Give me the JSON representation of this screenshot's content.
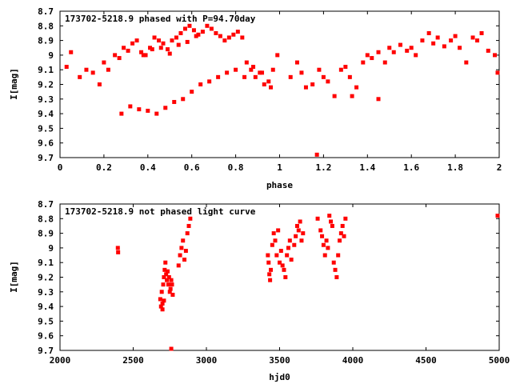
{
  "colors": {
    "points": "#ff0000",
    "frame": "#000000",
    "background": "#ffffff"
  },
  "chart_data": [
    {
      "type": "scatter",
      "title": "173702-5218.9 phased with P=94.70day",
      "xlabel": "phase",
      "ylabel": "I[mag]",
      "xlim": [
        0,
        2
      ],
      "ylim": [
        8.7,
        9.7
      ],
      "y_inverted": true,
      "grid": false,
      "x_ticks": [
        "0",
        "0.2",
        "0.4",
        "0.6",
        "0.8",
        "1",
        "1.2",
        "1.4",
        "1.6",
        "1.8",
        "2"
      ],
      "y_ticks": [
        "8.7",
        "8.8",
        "8.9",
        "9",
        "9.1",
        "9.2",
        "9.3",
        "9.4",
        "9.5",
        "9.6",
        "9.7"
      ],
      "series": [
        {
          "x": [
            0.03,
            0.05,
            0.09,
            0.12,
            0.15,
            0.18,
            0.2,
            0.22,
            0.25,
            0.27,
            0.29,
            0.31,
            0.33,
            0.35,
            0.37,
            0.39,
            0.41,
            0.43,
            0.45,
            0.47,
            0.49,
            0.51,
            0.53,
            0.55,
            0.57,
            0.59,
            0.61,
            0.63,
            0.65,
            0.67,
            0.69,
            0.71,
            0.73,
            0.75,
            0.77,
            0.79,
            0.81,
            0.83,
            0.85,
            0.87,
            0.89,
            0.91,
            0.93,
            0.95,
            0.97,
            0.99,
            0.28,
            0.32,
            0.36,
            0.4,
            0.44,
            0.48,
            0.52,
            0.56,
            0.6,
            0.64,
            0.68,
            0.72,
            0.76,
            0.8,
            0.84,
            0.88,
            0.92,
            0.96,
            1.05,
            1.08,
            1.12,
            1.15,
            1.18,
            1.2,
            1.22,
            1.25,
            1.28,
            1.3,
            1.32,
            1.35,
            1.38,
            1.4,
            1.42,
            1.45,
            1.48,
            1.5,
            1.52,
            1.55,
            1.58,
            1.6,
            1.62,
            1.65,
            1.68,
            1.7,
            1.72,
            1.75,
            1.78,
            1.8,
            1.82,
            1.85,
            1.88,
            1.9,
            1.92,
            1.95,
            1.98,
            2.0,
            1.17,
            1.1,
            1.33,
            1.45,
            0.46,
            0.5,
            0.54,
            0.58,
            0.62,
            0.42,
            0.38
          ],
          "y": [
            9.08,
            8.98,
            9.15,
            9.1,
            9.12,
            9.2,
            9.05,
            9.1,
            9.0,
            9.02,
            8.95,
            8.97,
            8.92,
            8.9,
            8.98,
            9.0,
            8.95,
            8.88,
            8.9,
            8.92,
            8.96,
            8.9,
            8.88,
            8.85,
            8.82,
            8.8,
            8.83,
            8.86,
            8.84,
            8.8,
            8.82,
            8.85,
            8.87,
            8.9,
            8.88,
            8.86,
            8.84,
            8.88,
            9.05,
            9.1,
            9.15,
            9.12,
            9.2,
            9.18,
            9.1,
            9.0,
            9.4,
            9.35,
            9.37,
            9.38,
            9.4,
            9.36,
            9.32,
            9.3,
            9.25,
            9.2,
            9.18,
            9.15,
            9.12,
            9.1,
            9.15,
            9.08,
            9.12,
            9.22,
            9.15,
            9.05,
            9.22,
            9.2,
            9.1,
            9.15,
            9.18,
            9.28,
            9.1,
            9.08,
            9.15,
            9.22,
            9.05,
            9.0,
            9.02,
            8.98,
            9.05,
            8.95,
            8.98,
            8.93,
            8.97,
            8.95,
            9.0,
            8.9,
            8.85,
            8.92,
            8.88,
            8.94,
            8.9,
            8.87,
            8.95,
            9.05,
            8.88,
            8.9,
            8.85,
            8.97,
            9.0,
            9.12,
            9.68,
            9.12,
            9.28,
            9.3,
            8.95,
            8.99,
            8.93,
            8.91,
            8.87,
            8.96,
            9.0
          ]
        }
      ]
    },
    {
      "type": "scatter",
      "title": "173702-5218.9 not phased light curve",
      "xlabel": "hjd0",
      "ylabel": "I[mag]",
      "xlim": [
        2000,
        5000
      ],
      "ylim": [
        8.7,
        9.7
      ],
      "y_inverted": true,
      "grid": false,
      "x_ticks": [
        "2000",
        "2500",
        "3000",
        "3500",
        "4000",
        "4500",
        "5000"
      ],
      "y_ticks": [
        "8.7",
        "8.8",
        "8.9",
        "9",
        "9.1",
        "9.2",
        "9.3",
        "9.4",
        "9.5",
        "9.6",
        "9.7"
      ],
      "series": [
        {
          "x": [
            2395,
            2397,
            2685,
            2690,
            2695,
            2700,
            2705,
            2710,
            2715,
            2720,
            2725,
            2730,
            2735,
            2740,
            2745,
            2750,
            2755,
            2760,
            2765,
            2770,
            2810,
            2820,
            2830,
            2840,
            2850,
            2860,
            2870,
            2880,
            2890,
            2760,
            2700,
            2710,
            3420,
            3425,
            3430,
            3435,
            3440,
            3450,
            3460,
            3470,
            3480,
            3490,
            3500,
            3510,
            3520,
            3530,
            3540,
            3550,
            3560,
            3570,
            3580,
            3600,
            3610,
            3620,
            3630,
            3640,
            3650,
            3660,
            3760,
            3780,
            3790,
            3800,
            3810,
            3820,
            3830,
            3840,
            3850,
            3860,
            3870,
            3880,
            3890,
            3900,
            3910,
            3920,
            3930,
            3940,
            3950,
            4995
          ],
          "y": [
            9.0,
            9.03,
            9.35,
            9.4,
            9.3,
            9.38,
            9.25,
            9.2,
            9.15,
            9.1,
            9.18,
            9.22,
            9.16,
            9.25,
            9.2,
            9.3,
            9.28,
            9.22,
            9.25,
            9.32,
            9.12,
            9.05,
            9.0,
            8.95,
            9.08,
            9.02,
            8.9,
            8.85,
            8.8,
            9.7,
            9.42,
            9.36,
            9.05,
            9.1,
            9.18,
            9.22,
            9.15,
            8.98,
            8.9,
            8.95,
            9.05,
            8.88,
            9.1,
            9.02,
            9.12,
            9.15,
            9.2,
            9.05,
            9.0,
            8.95,
            9.08,
            8.98,
            8.92,
            8.85,
            8.88,
            8.82,
            8.95,
            8.9,
            8.8,
            8.88,
            8.92,
            8.98,
            9.05,
            8.95,
            9.0,
            8.78,
            8.82,
            8.85,
            9.1,
            9.15,
            9.2,
            9.05,
            8.95,
            8.9,
            8.85,
            8.92,
            8.8,
            8.78
          ]
        }
      ]
    }
  ]
}
